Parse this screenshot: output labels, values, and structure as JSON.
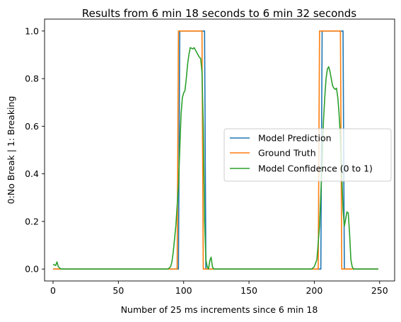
{
  "chart_data": {
    "type": "line",
    "title": "Results from 6 min 18 seconds to 6 min 32 seconds",
    "xlabel": "Number of 25 ms increments since 6 min 18",
    "ylabel": "0:No Break | 1: Breaking",
    "xlim": [
      -6.5,
      261.5
    ],
    "ylim": [
      -0.05,
      1.05
    ],
    "x_ticks": [
      0,
      50,
      100,
      150,
      200,
      250
    ],
    "y_ticks": [
      0.0,
      0.2,
      0.4,
      0.6,
      0.8,
      1.0
    ],
    "x_tick_labels": [
      "0",
      "50",
      "100",
      "150",
      "200",
      "250"
    ],
    "y_tick_labels": [
      "0.0",
      "0.2",
      "0.4",
      "0.6",
      "0.8",
      "1.0"
    ],
    "legend_position": "center-right",
    "grid": false,
    "series": [
      {
        "name": "Model Prediction",
        "color": "#1f77b4",
        "points": [
          [
            0,
            0
          ],
          [
            96,
            0
          ],
          [
            97,
            1
          ],
          [
            116,
            1
          ],
          [
            117,
            0
          ],
          [
            205,
            0
          ],
          [
            206,
            1
          ],
          [
            222,
            1
          ],
          [
            223,
            0
          ],
          [
            249,
            0
          ]
        ]
      },
      {
        "name": "Ground Truth",
        "color": "#ff7f0e",
        "points": [
          [
            0,
            0
          ],
          [
            95,
            0
          ],
          [
            96,
            1
          ],
          [
            114,
            1
          ],
          [
            115,
            0
          ],
          [
            203,
            0
          ],
          [
            204,
            1
          ],
          [
            220,
            1
          ],
          [
            221,
            0
          ],
          [
            249,
            0
          ]
        ]
      },
      {
        "name": "Model Confidence (0 to 1)",
        "color": "#2ca02c",
        "points": [
          [
            0,
            0.02
          ],
          [
            2,
            0.015
          ],
          [
            3,
            0.03
          ],
          [
            4,
            0.01
          ],
          [
            6,
            0.0
          ],
          [
            88,
            0.0
          ],
          [
            90,
            0.01
          ],
          [
            91,
            0.03
          ],
          [
            92,
            0.07
          ],
          [
            94,
            0.18
          ],
          [
            96,
            0.35
          ],
          [
            97,
            0.5
          ],
          [
            98,
            0.65
          ],
          [
            99,
            0.72
          ],
          [
            100,
            0.74
          ],
          [
            101,
            0.75
          ],
          [
            102,
            0.8
          ],
          [
            103,
            0.86
          ],
          [
            104,
            0.9
          ],
          [
            105,
            0.93
          ],
          [
            107,
            0.925
          ],
          [
            108,
            0.93
          ],
          [
            109,
            0.92
          ],
          [
            111,
            0.9
          ],
          [
            112,
            0.89
          ],
          [
            113,
            0.885
          ],
          [
            114,
            0.83
          ],
          [
            115,
            0.6
          ],
          [
            116,
            0.2
          ],
          [
            117,
            0.04
          ],
          [
            118,
            0.01
          ],
          [
            119,
            0.0
          ],
          [
            120,
            0.035
          ],
          [
            121,
            0.05
          ],
          [
            122,
            0.01
          ],
          [
            123,
            0.0
          ],
          [
            198,
            0.0
          ],
          [
            200,
            0.01
          ],
          [
            202,
            0.04
          ],
          [
            204,
            0.18
          ],
          [
            206,
            0.45
          ],
          [
            207,
            0.62
          ],
          [
            208,
            0.72
          ],
          [
            209,
            0.8
          ],
          [
            210,
            0.84
          ],
          [
            211,
            0.85
          ],
          [
            212,
            0.83
          ],
          [
            213,
            0.8
          ],
          [
            214,
            0.77
          ],
          [
            215,
            0.76
          ],
          [
            216,
            0.755
          ],
          [
            217,
            0.76
          ],
          [
            218,
            0.72
          ],
          [
            219,
            0.65
          ],
          [
            220,
            0.55
          ],
          [
            221,
            0.4
          ],
          [
            222,
            0.25
          ],
          [
            223,
            0.18
          ],
          [
            224,
            0.21
          ],
          [
            225,
            0.24
          ],
          [
            226,
            0.235
          ],
          [
            227,
            0.15
          ],
          [
            228,
            0.04
          ],
          [
            229,
            0.01
          ],
          [
            230,
            0.0
          ],
          [
            249,
            0.0
          ]
        ]
      }
    ]
  }
}
